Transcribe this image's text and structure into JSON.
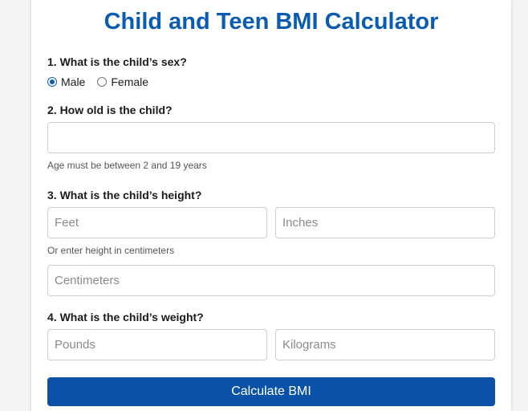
{
  "title": "Child and Teen BMI Calculator",
  "sex": {
    "question": "1. What is the child’s sex?",
    "options": [
      {
        "label": "Male",
        "selected": true
      },
      {
        "label": "Female",
        "selected": false
      }
    ]
  },
  "age": {
    "question": "2. How old is the child?",
    "value": "",
    "hint": "Age must be between 2 and 19 years"
  },
  "height": {
    "question": "3. What is the child’s height?",
    "feet_placeholder": "Feet",
    "inches_placeholder": "Inches",
    "hint": "Or enter height in centimeters",
    "cm_placeholder": "Centimeters"
  },
  "weight": {
    "question": "4. What is the child’s weight?",
    "pounds_placeholder": "Pounds",
    "kg_placeholder": "Kilograms"
  },
  "submit_label": "Calculate BMI",
  "colors": {
    "title": "#0a5cb3",
    "button": "#0a52a8",
    "radio_selected": "#0a5cb3"
  }
}
